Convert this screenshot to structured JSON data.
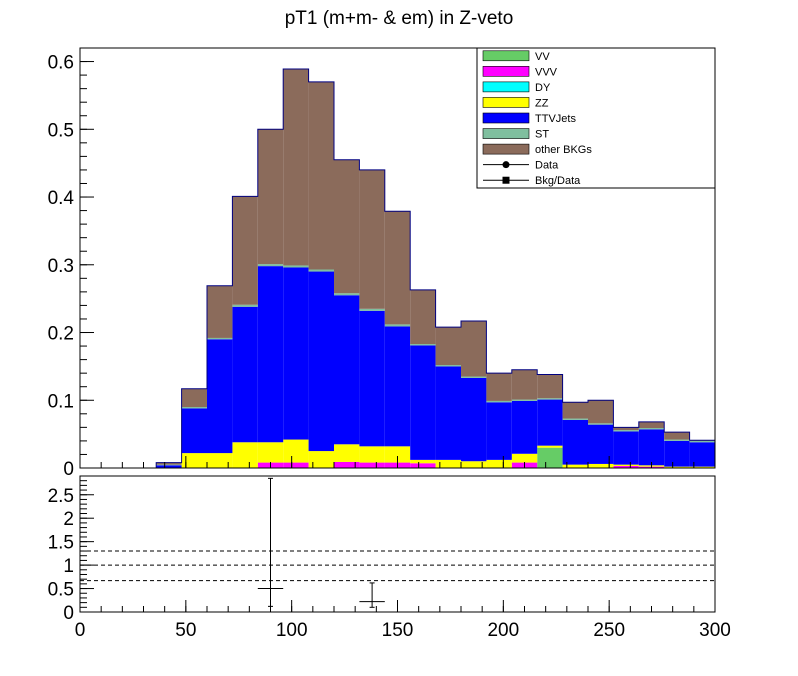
{
  "chart_data": {
    "type": "bar",
    "title": "pT1 (m+m- & em) in Z-veto",
    "xlabel": "",
    "ylabel": "",
    "xlim": [
      0,
      300
    ],
    "ylim": [
      0,
      0.62
    ],
    "bin_edges": [
      0,
      12,
      24,
      36,
      48,
      60,
      72,
      84,
      96,
      108,
      120,
      132,
      144,
      156,
      168,
      180,
      192,
      204,
      216,
      228,
      240,
      252,
      264,
      276,
      288,
      300
    ],
    "x_ticks": [
      "0",
      "50",
      "100",
      "150",
      "200",
      "250",
      "300"
    ],
    "x_tick_values": [
      0,
      50,
      100,
      150,
      200,
      250,
      300
    ],
    "y_ticks": [
      "0",
      "0.1",
      "0.2",
      "0.3",
      "0.4",
      "0.5",
      "0.6"
    ],
    "y_tick_values": [
      0,
      0.1,
      0.2,
      0.3,
      0.4,
      0.5,
      0.6
    ],
    "series": [
      {
        "name": "VV",
        "color": "#66cc66",
        "values": [
          0,
          0,
          0,
          0,
          0,
          0,
          0,
          0,
          0,
          0,
          0,
          0,
          0,
          0,
          0,
          0,
          0,
          0,
          0.03,
          0,
          0,
          0,
          0,
          0,
          0
        ]
      },
      {
        "name": "VVV",
        "color": "#ff00ff",
        "values": [
          0,
          0,
          0,
          0,
          0,
          0,
          0,
          0.008,
          0.008,
          0,
          0.009,
          0.008,
          0.008,
          0.007,
          0,
          0,
          0,
          0.008,
          0,
          0,
          0,
          0.003,
          0.002,
          0,
          0
        ]
      },
      {
        "name": "DY",
        "color": "#00ffff",
        "values": [
          0,
          0,
          0,
          0,
          0,
          0,
          0,
          0,
          0,
          0,
          0,
          0,
          0,
          0,
          0,
          0,
          0,
          0,
          0,
          0,
          0,
          0,
          0,
          0,
          0
        ]
      },
      {
        "name": "ZZ",
        "color": "#ffff00",
        "values": [
          0,
          0,
          0,
          0,
          0.022,
          0.022,
          0.038,
          0.03,
          0.034,
          0.025,
          0.026,
          0.024,
          0.024,
          0.005,
          0.012,
          0.01,
          0.012,
          0.013,
          0.003,
          0.005,
          0.006,
          0.002,
          0.002,
          0.002,
          0.002
        ]
      },
      {
        "name": "TTVJets",
        "color": "#0000ff",
        "values": [
          0,
          0,
          0,
          0.004,
          0.066,
          0.168,
          0.2,
          0.26,
          0.254,
          0.265,
          0.22,
          0.2,
          0.177,
          0.169,
          0.138,
          0.123,
          0.085,
          0.078,
          0.068,
          0.066,
          0.058,
          0.049,
          0.053,
          0.038,
          0.036
        ]
      },
      {
        "name": "ST",
        "color": "#7fbf9f",
        "values": [
          0,
          0,
          0,
          0.001,
          0.002,
          0.002,
          0.003,
          0.003,
          0.003,
          0.003,
          0.003,
          0.003,
          0.003,
          0.002,
          0.002,
          0.002,
          0.002,
          0.002,
          0.002,
          0.002,
          0.002,
          0.002,
          0.002,
          0.002,
          0.002
        ]
      },
      {
        "name": "other BKGs",
        "color": "#8b6b5b",
        "values": [
          0,
          0,
          0,
          0.003,
          0.027,
          0.077,
          0.16,
          0.199,
          0.29,
          0.277,
          0.197,
          0.205,
          0.167,
          0.08,
          0.056,
          0.082,
          0.041,
          0.044,
          0.035,
          0.024,
          0.034,
          0.004,
          0.009,
          0.011,
          0.001
        ]
      }
    ],
    "legend": {
      "placement": "top-right",
      "entries": [
        {
          "name": "VV",
          "kind": "fill",
          "color": "#66cc66"
        },
        {
          "name": "VVV",
          "kind": "fill",
          "color": "#ff00ff"
        },
        {
          "name": "DY",
          "kind": "fill",
          "color": "#00ffff"
        },
        {
          "name": "ZZ",
          "kind": "fill",
          "color": "#ffff00"
        },
        {
          "name": "TTVJets",
          "kind": "fill",
          "color": "#0000ff"
        },
        {
          "name": "ST",
          "kind": "fill",
          "color": "#7fbf9f"
        },
        {
          "name": "other BKGs",
          "kind": "fill",
          "color": "#8b6b5b"
        },
        {
          "name": "Data",
          "kind": "marker-circle",
          "color": "#000000"
        },
        {
          "name": "Bkg/Data",
          "kind": "marker-square",
          "color": "#000000"
        }
      ]
    },
    "ratio": {
      "ylim": [
        0,
        2.9
      ],
      "y_ticks": [
        "0",
        "0.5",
        "1",
        "1.5",
        "2",
        "2.5"
      ],
      "y_tick_values": [
        0,
        0.5,
        1,
        1.5,
        2,
        2.5
      ],
      "reference_lines": [
        0.67,
        1.0,
        1.3
      ],
      "points": [
        {
          "x": 90,
          "xerr": 6,
          "y": 0.5,
          "ylow": 0.12,
          "yhigh": 2.85
        },
        {
          "x": 138,
          "xerr": 6,
          "y": 0.22,
          "ylow": 0.1,
          "yhigh": 0.62
        }
      ]
    }
  }
}
